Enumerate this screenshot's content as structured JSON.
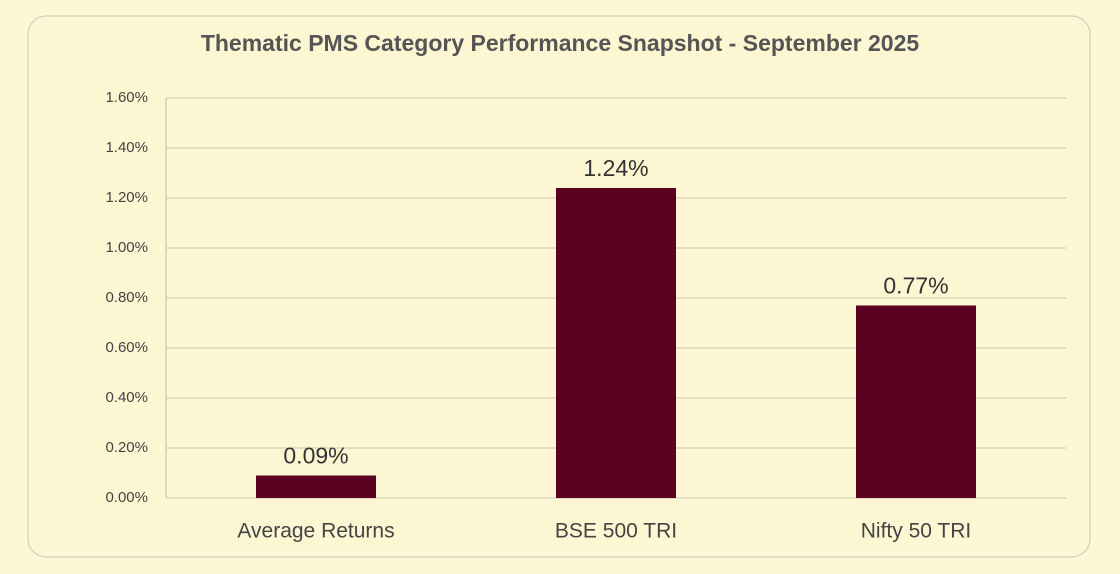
{
  "chart_data": {
    "type": "bar",
    "title": "Thematic PMS Category Performance Snapshot - September 2025",
    "categories": [
      "Average Returns",
      "BSE 500 TRI",
      "Nifty 50 TRI"
    ],
    "values": [
      0.09,
      1.24,
      0.77
    ],
    "value_labels": [
      "0.09%",
      "1.24%",
      "0.77%"
    ],
    "color": "#5c0120",
    "ylim": [
      0,
      1.6
    ],
    "yticks": [
      {
        "value": 0,
        "label": "0.00%"
      },
      {
        "value": 0.2,
        "label": "0.20%"
      },
      {
        "value": 0.4,
        "label": "0.40%"
      },
      {
        "value": 0.6,
        "label": "0.60%"
      },
      {
        "value": 0.8,
        "label": "0.80%"
      },
      {
        "value": 1.0,
        "label": "1.00%"
      },
      {
        "value": 1.2,
        "label": "1.20%"
      },
      {
        "value": 1.4,
        "label": "1.40%"
      },
      {
        "value": 1.6,
        "label": "1.60%"
      }
    ],
    "grid": true
  }
}
